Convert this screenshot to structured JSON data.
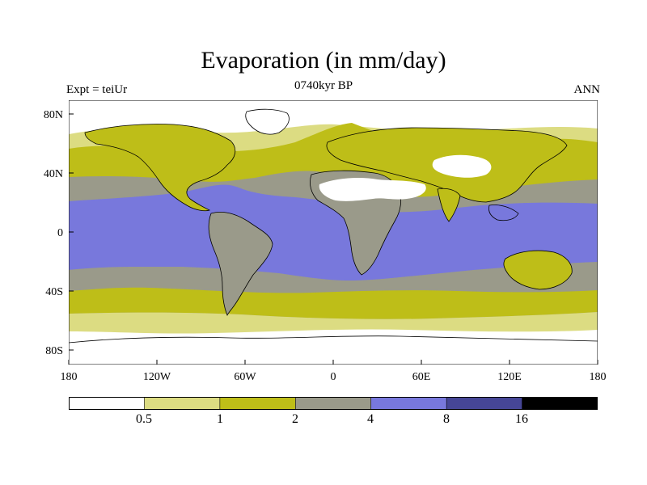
{
  "title": "Evaporation (in mm/day)",
  "subtitle": "0740kyr BP",
  "left_label": "Expt = teiUr",
  "right_label": "ANN",
  "axes": {
    "y_ticks": [
      "80N",
      "40N",
      "0",
      "40S",
      "80S"
    ],
    "x_ticks": [
      "180",
      "120W",
      "60W",
      "0",
      "60E",
      "120E",
      "180"
    ]
  },
  "colorbar": {
    "colors": [
      "#ffffff",
      "#dcdc82",
      "#bebe18",
      "#9a9a8a",
      "#7878dc",
      "#464696",
      "#000000"
    ],
    "labels": [
      "0.5",
      "1",
      "2",
      "4",
      "8",
      "16"
    ]
  }
}
